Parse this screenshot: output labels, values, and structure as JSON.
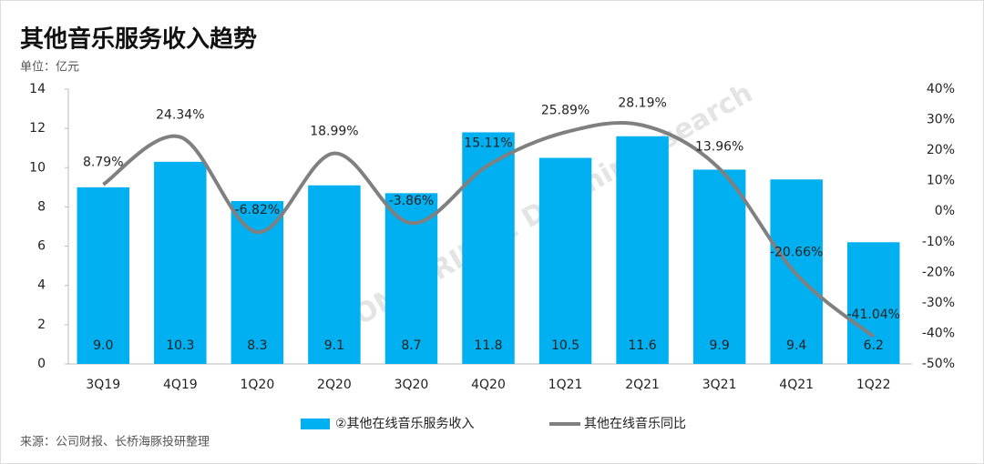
{
  "chart_data": {
    "type": "bar",
    "title": "其他音乐服务收入趋势",
    "unit": "单位：亿元",
    "source": "来源：公司财报、长桥海豚投研整理",
    "watermark": "LONGBRIDGE DolphinResearch",
    "categories": [
      "3Q19",
      "4Q19",
      "1Q20",
      "2Q20",
      "3Q20",
      "4Q20",
      "1Q21",
      "2Q21",
      "3Q21",
      "4Q21",
      "1Q22"
    ],
    "series": [
      {
        "name": "②其他在线音乐服务收入",
        "type": "bar",
        "color": "#00b0f0",
        "values": [
          9.0,
          10.3,
          8.3,
          9.1,
          8.7,
          11.8,
          10.5,
          11.6,
          9.9,
          9.4,
          6.2
        ],
        "value_labels": [
          "9.0",
          "10.3",
          "8.3",
          "9.1",
          "8.7",
          "11.8",
          "10.5",
          "11.6",
          "9.9",
          "9.4",
          "6.2"
        ]
      },
      {
        "name": "其他在线音乐同比",
        "type": "line",
        "axis": "y2",
        "color": "#808080",
        "values": [
          8.79,
          24.34,
          -6.82,
          18.99,
          -3.86,
          15.11,
          25.89,
          28.19,
          13.96,
          -20.66,
          -41.04
        ],
        "value_labels": [
          "8.79%",
          "24.34%",
          "-6.82%",
          "18.99%",
          "-3.86%",
          "15.11%",
          "25.89%",
          "28.19%",
          "13.96%",
          "-20.66%",
          "-41.04%"
        ]
      }
    ],
    "ylim": [
      0,
      14
    ],
    "yticks": [
      0,
      2,
      4,
      6,
      8,
      10,
      12,
      14
    ],
    "y2lim": [
      -50,
      40
    ],
    "y2ticks": [
      {
        "value": -50,
        "label": "-50%"
      },
      {
        "value": -40,
        "label": "-40%"
      },
      {
        "value": -30,
        "label": "-30%"
      },
      {
        "value": -20,
        "label": "-20%"
      },
      {
        "value": -10,
        "label": "-10%"
      },
      {
        "value": 0,
        "label": "0%"
      },
      {
        "value": 10,
        "label": "10%"
      },
      {
        "value": 20,
        "label": "20%"
      },
      {
        "value": 30,
        "label": "30%"
      },
      {
        "value": 40,
        "label": "40%"
      }
    ],
    "legend": "bottom"
  }
}
